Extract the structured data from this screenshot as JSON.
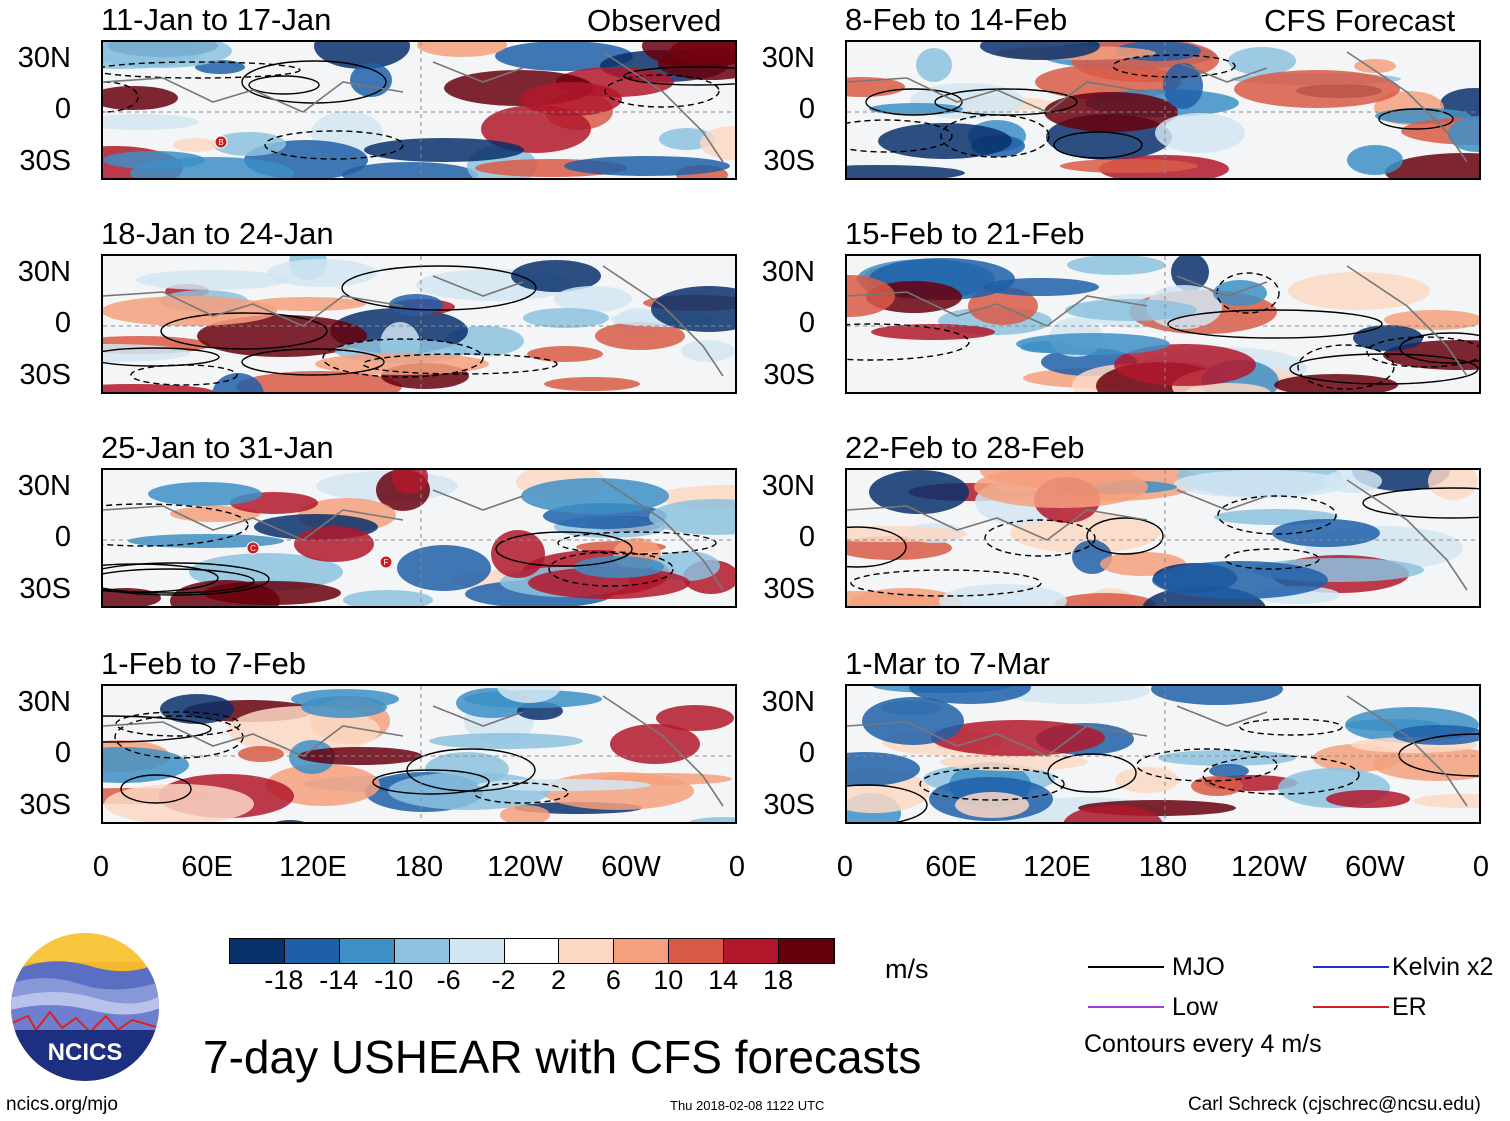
{
  "header": {
    "left_label": "Observed",
    "right_label": "CFS Forecast"
  },
  "panels": [
    {
      "title": "11-Jan to 17-Jan",
      "storms": [
        "B"
      ]
    },
    {
      "title": "18-Jan to 24-Jan",
      "storms": []
    },
    {
      "title": "25-Jan to 31-Jan",
      "storms": [
        "C",
        "F"
      ]
    },
    {
      "title": "1-Feb to 7-Feb",
      "storms": []
    },
    {
      "title": "8-Feb to 14-Feb",
      "storms": []
    },
    {
      "title": "15-Feb to 21-Feb",
      "storms": []
    },
    {
      "title": "22-Feb to 28-Feb",
      "storms": []
    },
    {
      "title": "1-Mar to 7-Mar",
      "storms": []
    }
  ],
  "axes": {
    "y_ticks": [
      "30N",
      "0",
      "30S"
    ],
    "x_ticks": [
      "0",
      "60E",
      "120E",
      "180",
      "120W",
      "60W",
      "0"
    ]
  },
  "colorbar": {
    "unit": "m/s",
    "labels": [
      "-18",
      "-14",
      "-10",
      "-6",
      "-2",
      "2",
      "6",
      "10",
      "14",
      "18"
    ],
    "colors": [
      "#08306b",
      "#1f5fa8",
      "#3d8fc6",
      "#8cc2df",
      "#d2e6f2",
      "#ffffff",
      "#fcd8c4",
      "#f4a07e",
      "#d95a46",
      "#b2182b",
      "#67000d"
    ]
  },
  "legend": {
    "items": [
      {
        "label": "MJO",
        "color": "#000000"
      },
      {
        "label": "Kelvin x2",
        "color": "#1f2fd0"
      },
      {
        "label": "Low",
        "color": "#9b3fe0"
      },
      {
        "label": "ER",
        "color": "#d01f1f"
      }
    ],
    "note": "Contours every 4 m/s"
  },
  "chart_data": {
    "type": "heatmap",
    "title": "7-day USHEAR with CFS forecasts",
    "variable": "USHEAR",
    "unit": "m/s",
    "latitude_range": [
      "40S",
      "40N"
    ],
    "longitude_range": [
      "0",
      "360"
    ],
    "contour_interval": 4,
    "observed_periods": [
      "11-Jan to 17-Jan",
      "18-Jan to 24-Jan",
      "25-Jan to 31-Jan",
      "1-Feb to 7-Feb"
    ],
    "forecast_periods": [
      "8-Feb to 14-Feb",
      "15-Feb to 21-Feb",
      "22-Feb to 28-Feb",
      "1-Mar to 7-Mar"
    ]
  },
  "footer": {
    "logo_text": "NCICS",
    "url": "ncics.org/mjo",
    "timestamp": "Thu 2018-02-08 1122 UTC",
    "author": "Carl Schreck (cjschrec@ncsu.edu)"
  }
}
